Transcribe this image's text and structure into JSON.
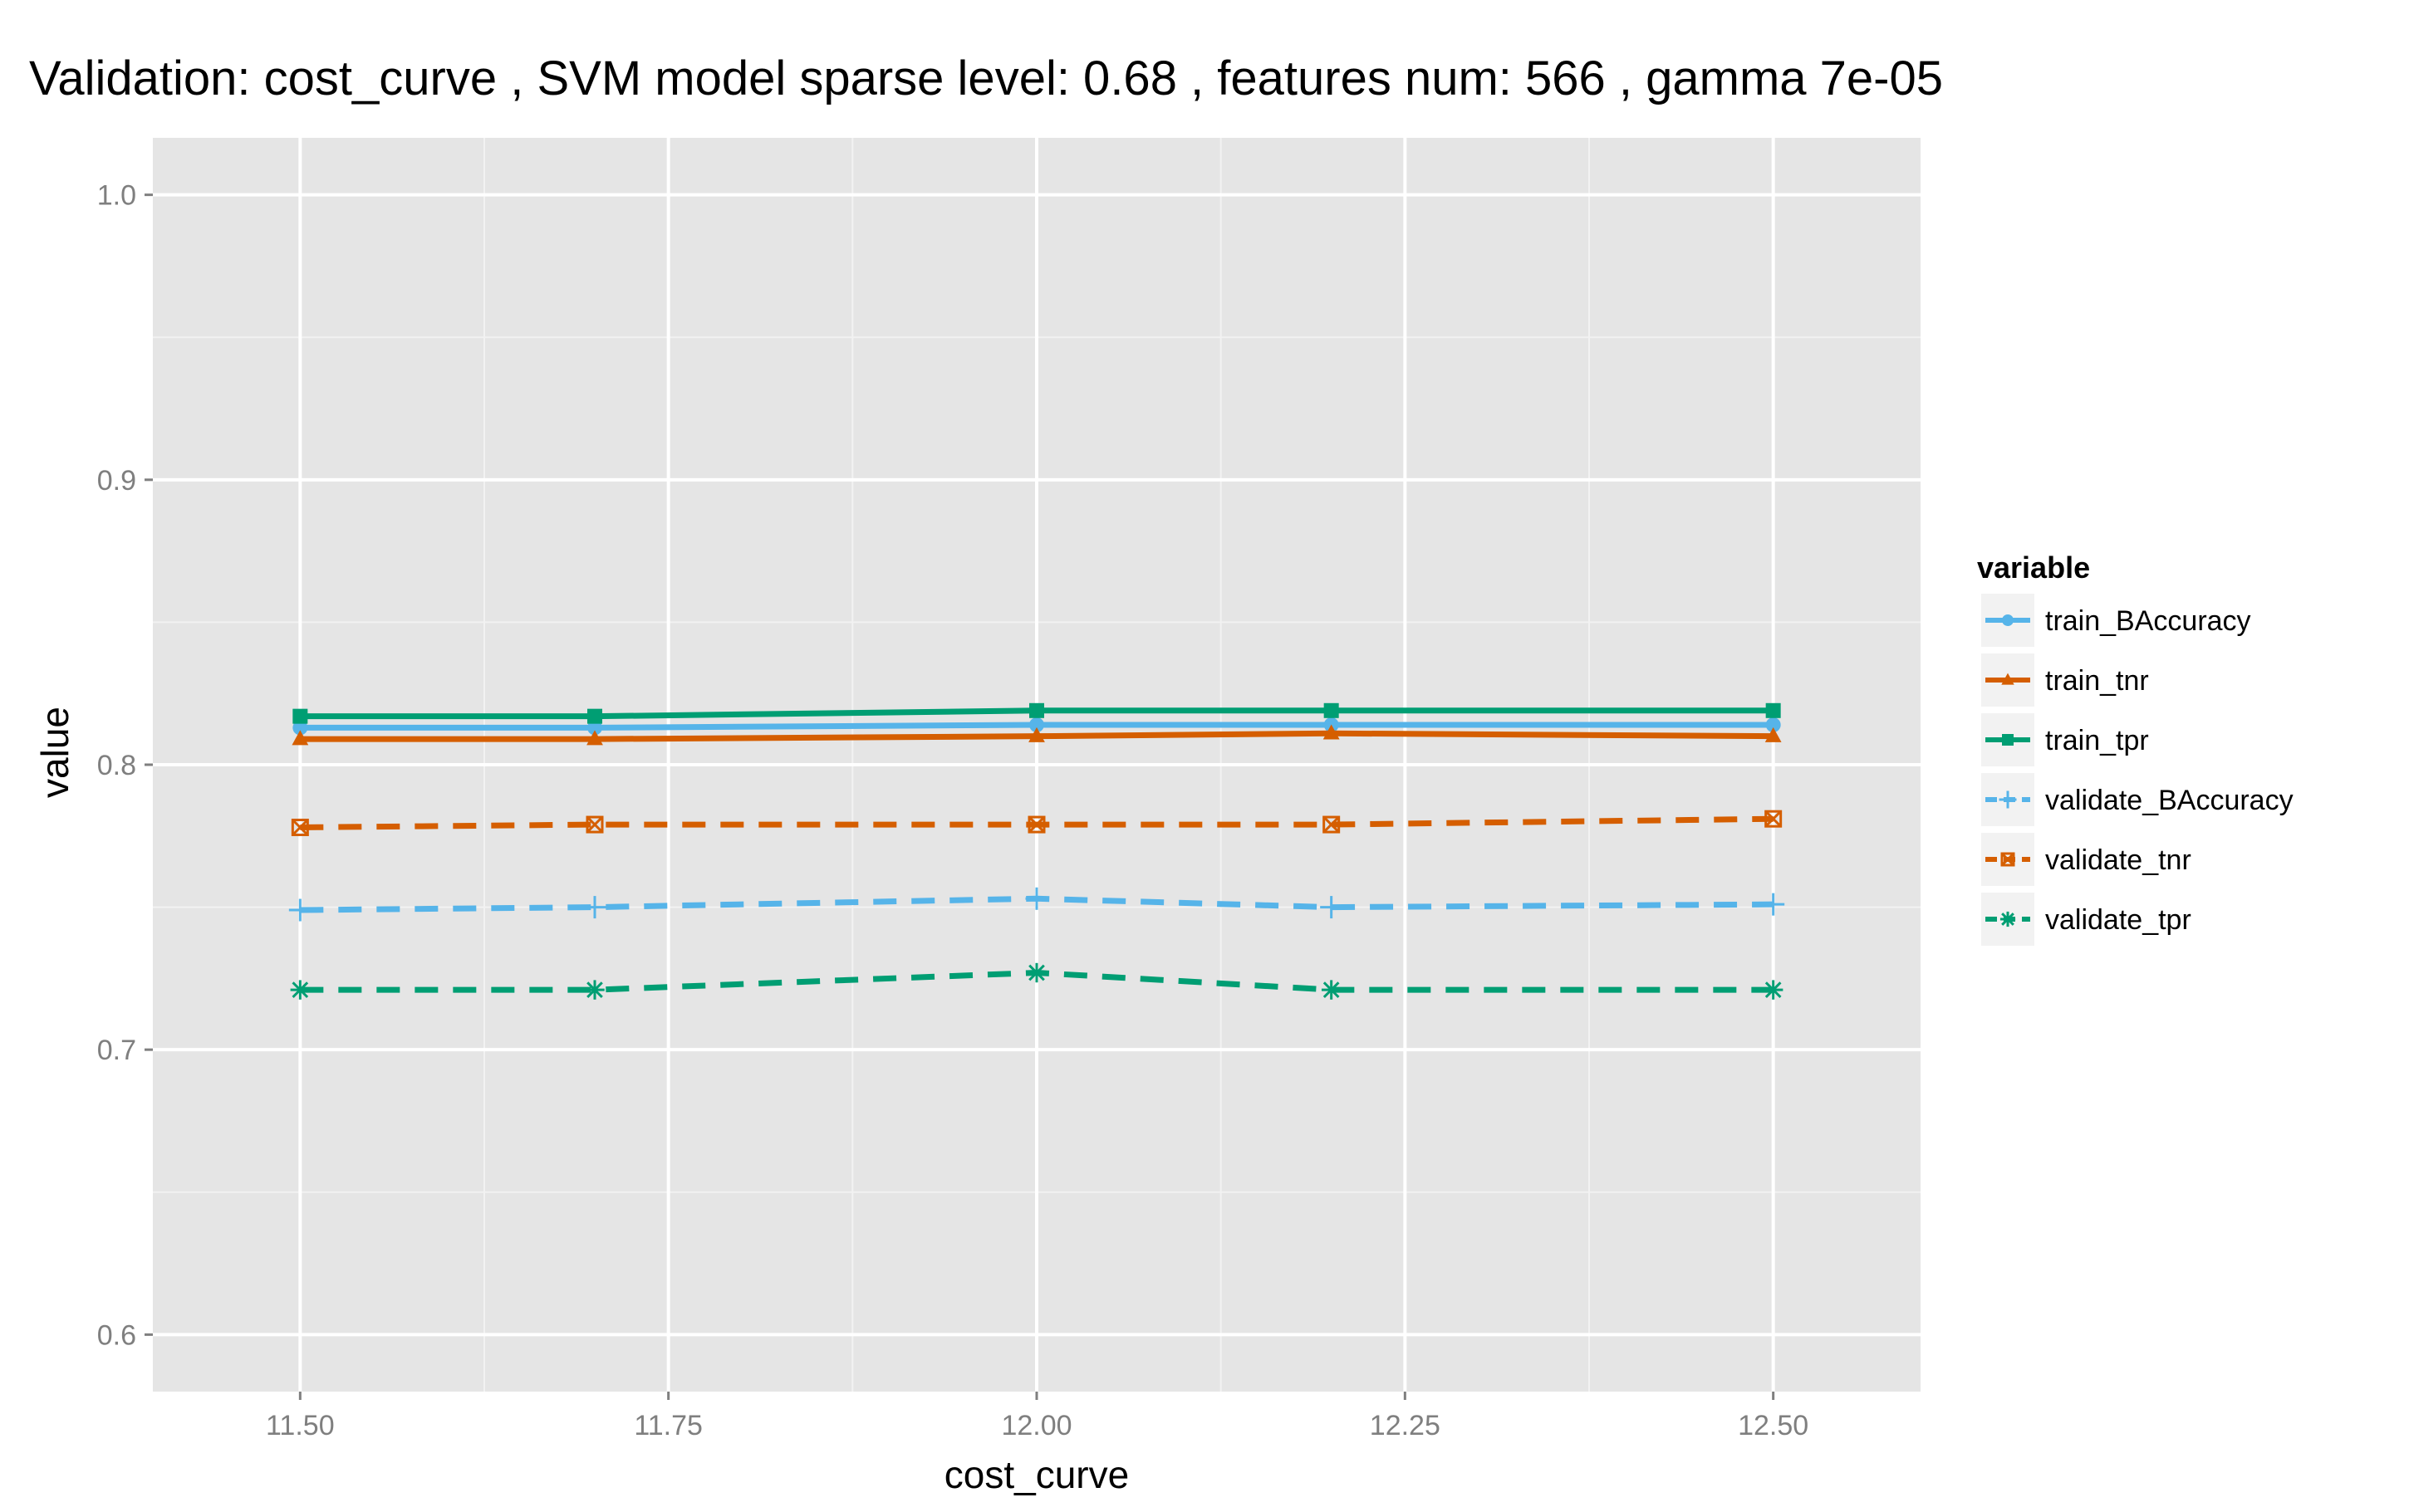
{
  "chart_data": {
    "type": "line",
    "title": "Validation:  cost_curve ,  SVM model sparse level: 0.68 , features num: 566 , gamma 7e-05",
    "xlabel": "cost_curve",
    "ylabel": "value",
    "xlim": [
      11.4,
      12.6
    ],
    "ylim": [
      0.58,
      1.02
    ],
    "xticks": [
      11.5,
      11.75,
      12.0,
      12.25,
      12.5
    ],
    "xtick_labels": [
      "11.50",
      "11.75",
      "12.00",
      "12.25",
      "12.50"
    ],
    "yticks": [
      0.6,
      0.7,
      0.8,
      0.9,
      1.0
    ],
    "ytick_labels": [
      "0.6",
      "0.7",
      "0.8",
      "0.9",
      "1.0"
    ],
    "grid": true,
    "background": "#e5e5e5",
    "legend": {
      "title": "variable",
      "placement": "right"
    },
    "x": [
      11.5,
      11.7,
      12.0,
      12.2,
      12.5
    ],
    "series": [
      {
        "name": "train_BAccuracy",
        "color": "#56b4e9",
        "dash": "solid",
        "marker": "circle",
        "values": [
          0.813,
          0.813,
          0.814,
          0.814,
          0.814
        ]
      },
      {
        "name": "train_tnr",
        "color": "#d55e00",
        "dash": "solid",
        "marker": "triangle",
        "values": [
          0.809,
          0.809,
          0.81,
          0.811,
          0.81
        ]
      },
      {
        "name": "train_tpr",
        "color": "#009e73",
        "dash": "solid",
        "marker": "square",
        "values": [
          0.817,
          0.817,
          0.819,
          0.819,
          0.819
        ]
      },
      {
        "name": "validate_BAccuracy",
        "color": "#56b4e9",
        "dash": "dashed",
        "marker": "plus",
        "values": [
          0.749,
          0.75,
          0.753,
          0.75,
          0.751
        ]
      },
      {
        "name": "validate_tnr",
        "color": "#d55e00",
        "dash": "dashed",
        "marker": "boxcross",
        "values": [
          0.778,
          0.779,
          0.779,
          0.779,
          0.781
        ]
      },
      {
        "name": "validate_tpr",
        "color": "#009e73",
        "dash": "dashed",
        "marker": "asterisk",
        "values": [
          0.721,
          0.721,
          0.727,
          0.721,
          0.721
        ]
      }
    ]
  }
}
